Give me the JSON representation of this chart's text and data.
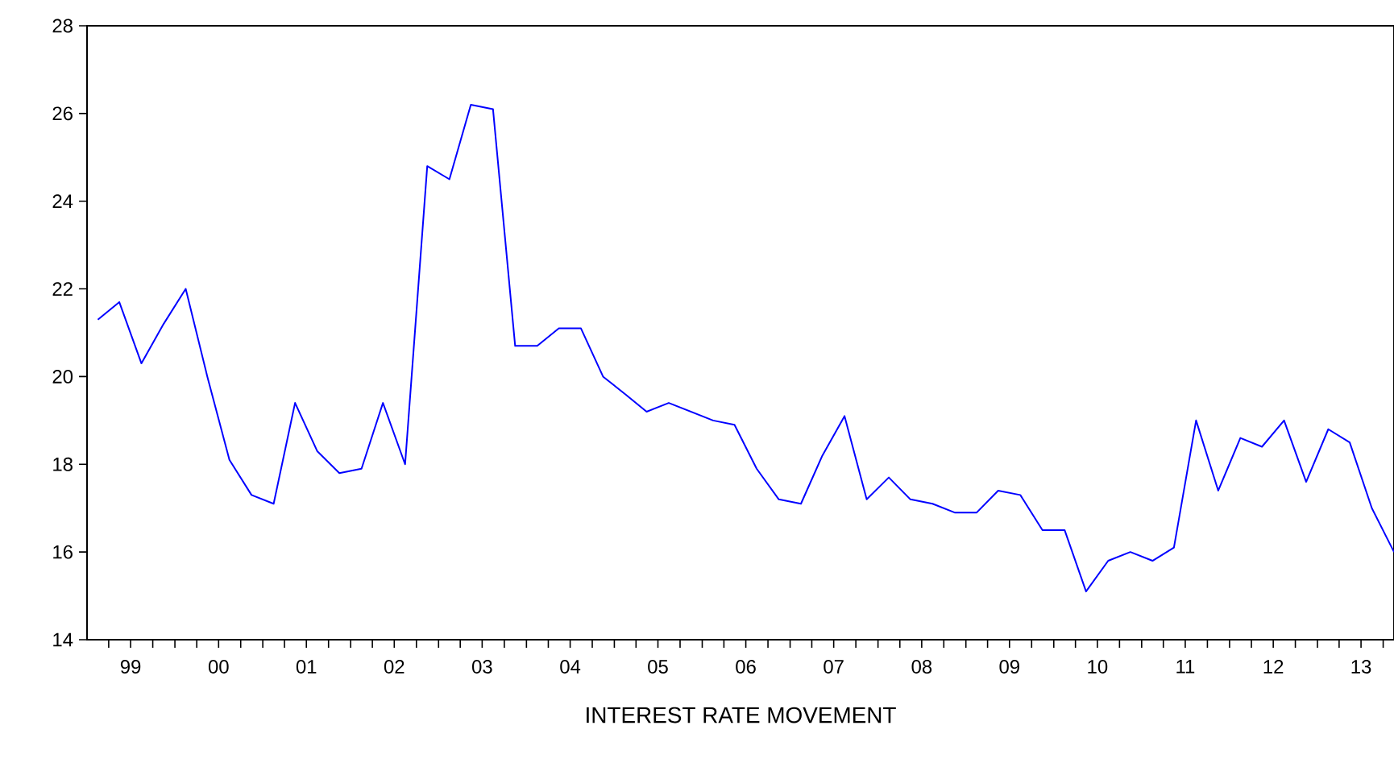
{
  "chart_data": {
    "type": "line",
    "xlabel": "INTEREST RATE MOVEMENT",
    "x": [
      "1999-02-15",
      "1999-05-15",
      "1999-08-15",
      "1999-11-15",
      "2000-02-15",
      "2000-05-15",
      "2000-08-15",
      "2000-11-15",
      "2001-02-15",
      "2001-05-15",
      "2001-08-15",
      "2001-11-15",
      "2002-02-15",
      "2002-05-15",
      "2002-08-15",
      "2002-11-15",
      "2003-02-15",
      "2003-05-15",
      "2003-08-15",
      "2003-11-15",
      "2004-02-15",
      "2004-05-15",
      "2004-08-15",
      "2004-11-15",
      "2005-02-15",
      "2005-05-15",
      "2005-08-15",
      "2005-11-15",
      "2006-02-15",
      "2006-05-15",
      "2006-08-15",
      "2006-11-15",
      "2007-02-15",
      "2007-05-15",
      "2007-08-15",
      "2007-11-15",
      "2008-02-15",
      "2008-05-15",
      "2008-08-15",
      "2008-11-15",
      "2009-02-15",
      "2009-05-15",
      "2009-08-15",
      "2009-11-15",
      "2010-02-15",
      "2010-05-15",
      "2010-08-15",
      "2010-11-15",
      "2011-02-15",
      "2011-05-15",
      "2011-08-15",
      "2011-11-15",
      "2012-02-15",
      "2012-05-15",
      "2012-08-15",
      "2012-11-15",
      "2013-02-15",
      "2013-05-15",
      "2013-08-15",
      "2013-11-15"
    ],
    "series": [
      {
        "color": "#0000ff",
        "values": [
          21.3,
          21.7,
          20.3,
          21.2,
          22.0,
          20.0,
          18.1,
          17.3,
          17.1,
          19.4,
          18.3,
          17.8,
          17.9,
          19.4,
          18.0,
          24.8,
          24.5,
          26.2,
          26.1,
          20.7,
          20.7,
          21.1,
          21.1,
          20.0,
          19.6,
          19.2,
          19.4,
          19.2,
          19.0,
          18.9,
          17.9,
          17.2,
          17.1,
          18.2,
          19.1,
          17.2,
          17.7,
          17.2,
          17.1,
          16.9,
          16.9,
          17.4,
          17.3,
          16.5,
          16.5,
          15.1,
          15.8,
          16.0,
          15.8,
          16.1,
          19.0,
          17.4,
          18.6,
          18.4,
          19.0,
          17.6,
          18.8,
          18.5,
          17.0,
          16.0
        ]
      }
    ],
    "xlim": [
      "1999-01-01",
      "2013-11-15"
    ],
    "ylim": [
      14,
      28
    ],
    "yticks": [
      14,
      16,
      18,
      20,
      22,
      24,
      26,
      28
    ],
    "xticks": [
      {
        "value": "1999-04-01",
        "label": null
      },
      {
        "value": "1999-07-01",
        "label": "99"
      },
      {
        "value": "1999-10-01",
        "label": null
      },
      {
        "value": "2000-01-01",
        "label": null
      },
      {
        "value": "2000-04-01",
        "label": null
      },
      {
        "value": "2000-07-01",
        "label": "00"
      },
      {
        "value": "2000-10-01",
        "label": null
      },
      {
        "value": "2001-01-01",
        "label": null
      },
      {
        "value": "2001-04-01",
        "label": null
      },
      {
        "value": "2001-07-01",
        "label": "01"
      },
      {
        "value": "2001-10-01",
        "label": null
      },
      {
        "value": "2002-01-01",
        "label": null
      },
      {
        "value": "2002-04-01",
        "label": null
      },
      {
        "value": "2002-07-01",
        "label": "02"
      },
      {
        "value": "2002-10-01",
        "label": null
      },
      {
        "value": "2003-01-01",
        "label": null
      },
      {
        "value": "2003-04-01",
        "label": null
      },
      {
        "value": "2003-07-01",
        "label": "03"
      },
      {
        "value": "2003-10-01",
        "label": null
      },
      {
        "value": "2004-01-01",
        "label": null
      },
      {
        "value": "2004-04-01",
        "label": null
      },
      {
        "value": "2004-07-01",
        "label": "04"
      },
      {
        "value": "2004-10-01",
        "label": null
      },
      {
        "value": "2005-01-01",
        "label": null
      },
      {
        "value": "2005-04-01",
        "label": null
      },
      {
        "value": "2005-07-01",
        "label": "05"
      },
      {
        "value": "2005-10-01",
        "label": null
      },
      {
        "value": "2006-01-01",
        "label": null
      },
      {
        "value": "2006-04-01",
        "label": null
      },
      {
        "value": "2006-07-01",
        "label": "06"
      },
      {
        "value": "2006-10-01",
        "label": null
      },
      {
        "value": "2007-01-01",
        "label": null
      },
      {
        "value": "2007-04-01",
        "label": null
      },
      {
        "value": "2007-07-01",
        "label": "07"
      },
      {
        "value": "2007-10-01",
        "label": null
      },
      {
        "value": "2008-01-01",
        "label": null
      },
      {
        "value": "2008-04-01",
        "label": null
      },
      {
        "value": "2008-07-01",
        "label": "08"
      },
      {
        "value": "2008-10-01",
        "label": null
      },
      {
        "value": "2009-01-01",
        "label": null
      },
      {
        "value": "2009-04-01",
        "label": null
      },
      {
        "value": "2009-07-01",
        "label": "09"
      },
      {
        "value": "2009-10-01",
        "label": null
      },
      {
        "value": "2010-01-01",
        "label": null
      },
      {
        "value": "2010-04-01",
        "label": null
      },
      {
        "value": "2010-07-01",
        "label": "10"
      },
      {
        "value": "2010-10-01",
        "label": null
      },
      {
        "value": "2011-01-01",
        "label": null
      },
      {
        "value": "2011-04-01",
        "label": null
      },
      {
        "value": "2011-07-01",
        "label": "11"
      },
      {
        "value": "2011-10-01",
        "label": null
      },
      {
        "value": "2012-01-01",
        "label": null
      },
      {
        "value": "2012-04-01",
        "label": null
      },
      {
        "value": "2012-07-01",
        "label": "12"
      },
      {
        "value": "2012-10-01",
        "label": null
      },
      {
        "value": "2013-01-01",
        "label": null
      },
      {
        "value": "2013-04-01",
        "label": null
      },
      {
        "value": "2013-07-01",
        "label": "13"
      },
      {
        "value": "2013-10-01",
        "label": null
      }
    ],
    "grid": false,
    "marker": "none",
    "line_style": "solid"
  }
}
